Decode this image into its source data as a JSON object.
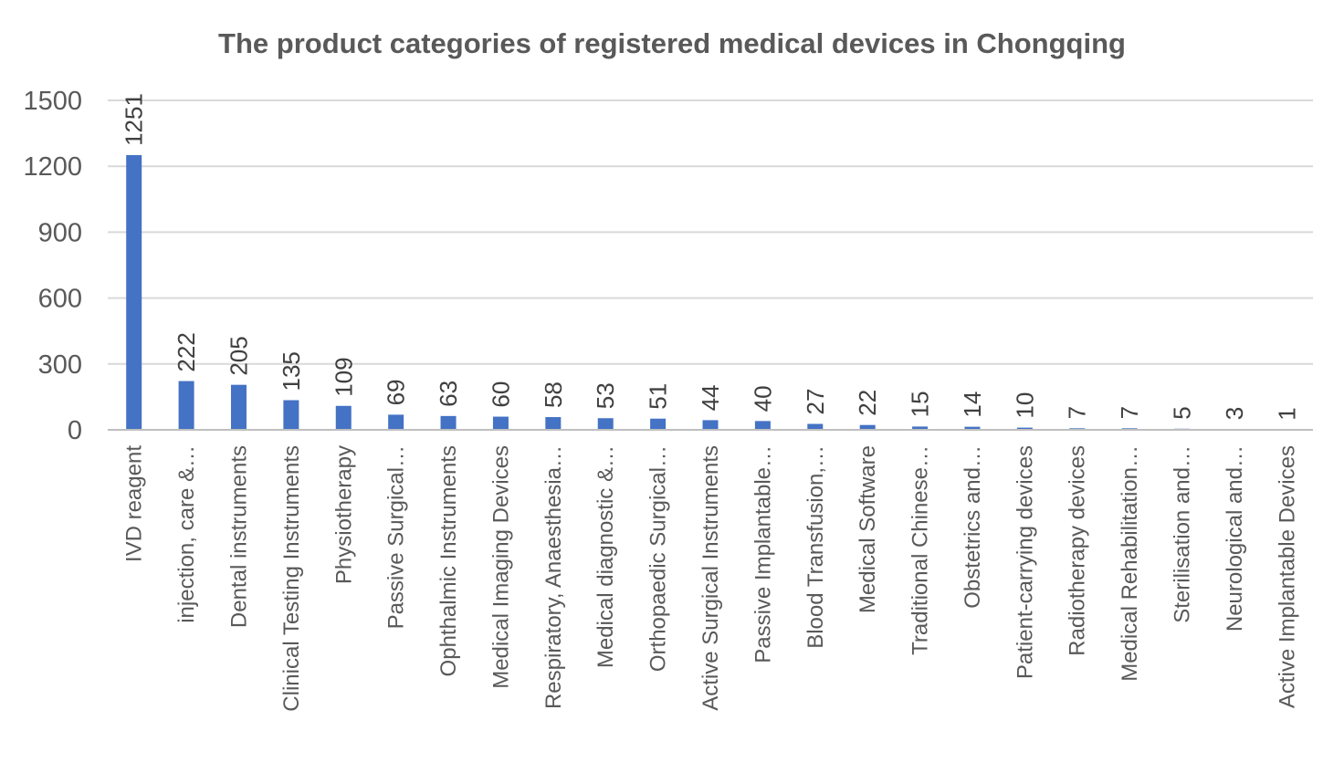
{
  "chart_data": {
    "type": "bar",
    "title": "The product categories of registered medical devices in Chongqing",
    "xlabel": "",
    "ylabel": "",
    "ylim": [
      0,
      1500
    ],
    "yticks": [
      "0",
      "300",
      "600",
      "900",
      "1200",
      "1500"
    ],
    "grid": true,
    "bar_color": "#4472c4",
    "categories": [
      "IVD reagent",
      "injection, care &…",
      "Dental instruments",
      "Clinical Testing Instruments",
      "Physiotherapy",
      "Passive Surgical…",
      "Ophthalmic Instruments",
      "Medical Imaging Devices",
      "Respiratory, Anaesthesia…",
      "Medical diagnostic &…",
      "Orthopaedic Surgical…",
      "Active Surgical Instruments",
      "Passive Implantable…",
      "Blood Transfusion,…",
      "Medical Software",
      "Traditional Chinese…",
      "Obstetrics and…",
      "Patient-carrying devices",
      "Radiotherapy devices",
      "Medical Rehabilitation…",
      "Sterilisation and…",
      "Neurological and…",
      "Active Implantable Devices"
    ],
    "values": [
      1251,
      222,
      205,
      135,
      109,
      69,
      63,
      60,
      58,
      53,
      51,
      44,
      40,
      27,
      22,
      15,
      14,
      10,
      7,
      7,
      5,
      3,
      1
    ]
  }
}
